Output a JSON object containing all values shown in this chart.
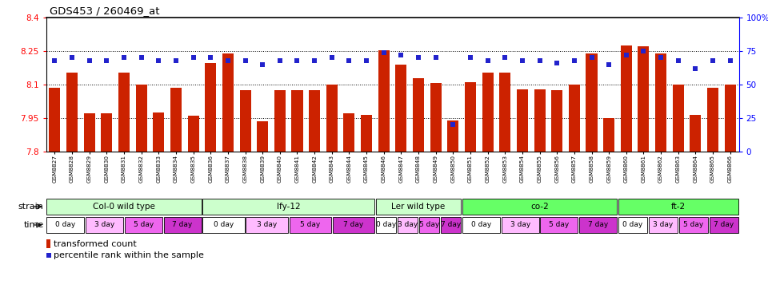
{
  "title": "GDS453 / 260469_at",
  "samples": [
    "GSM8827",
    "GSM8828",
    "GSM8829",
    "GSM8830",
    "GSM8831",
    "GSM8832",
    "GSM8833",
    "GSM8834",
    "GSM8835",
    "GSM8836",
    "GSM8837",
    "GSM8838",
    "GSM8839",
    "GSM8840",
    "GSM8841",
    "GSM8842",
    "GSM8843",
    "GSM8844",
    "GSM8845",
    "GSM8846",
    "GSM8847",
    "GSM8848",
    "GSM8849",
    "GSM8850",
    "GSM8851",
    "GSM8852",
    "GSM8853",
    "GSM8854",
    "GSM8855",
    "GSM8856",
    "GSM8857",
    "GSM8858",
    "GSM8859",
    "GSM8860",
    "GSM8861",
    "GSM8862",
    "GSM8863",
    "GSM8864",
    "GSM8865",
    "GSM8866"
  ],
  "bar_values": [
    8.085,
    8.155,
    7.97,
    7.97,
    8.155,
    8.1,
    7.975,
    8.085,
    7.96,
    8.195,
    8.24,
    8.075,
    7.935,
    8.075,
    8.075,
    8.075,
    8.1,
    7.97,
    7.965,
    8.255,
    8.19,
    8.13,
    8.108,
    7.94,
    8.11,
    8.155,
    8.155,
    8.08,
    8.08,
    8.075,
    8.1,
    8.24,
    7.95,
    8.275,
    8.27,
    8.24,
    8.1,
    7.965,
    8.085,
    8.1
  ],
  "percentile_values": [
    68,
    70,
    68,
    68,
    70,
    70,
    68,
    68,
    70,
    70,
    68,
    68,
    65,
    68,
    68,
    68,
    70,
    68,
    68,
    74,
    72,
    70,
    70,
    20,
    70,
    68,
    70,
    68,
    68,
    66,
    68,
    70,
    65,
    72,
    75,
    70,
    68,
    62,
    68,
    68
  ],
  "strain_defs": [
    {
      "name": "Col-0 wild type",
      "start": 0,
      "end": 9,
      "color": "#ccffcc"
    },
    {
      "name": "lfy-12",
      "start": 9,
      "end": 19,
      "color": "#ccffcc"
    },
    {
      "name": "Ler wild type",
      "start": 19,
      "end": 24,
      "color": "#ccffcc"
    },
    {
      "name": "co-2",
      "start": 24,
      "end": 33,
      "color": "#66ff66"
    },
    {
      "name": "ft-2",
      "start": 33,
      "end": 40,
      "color": "#66ff66"
    }
  ],
  "time_colors": [
    "#ffffff",
    "#ffbbff",
    "#ee66ee",
    "#cc33cc"
  ],
  "time_labels": [
    "0 day",
    "3 day",
    "5 day",
    "7 day"
  ],
  "ylim_left": [
    7.8,
    8.4
  ],
  "ylim_right": [
    0,
    100
  ],
  "yticks_left": [
    7.8,
    7.95,
    8.1,
    8.25,
    8.4
  ],
  "yticks_right": [
    0,
    25,
    50,
    75,
    100
  ],
  "grid_values": [
    7.95,
    8.1,
    8.25
  ],
  "bar_color": "#cc2200",
  "dot_color": "#2222cc"
}
